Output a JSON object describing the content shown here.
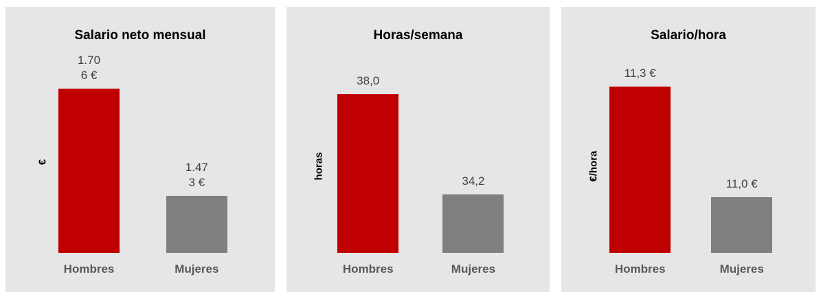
{
  "chart_data": [
    {
      "type": "bar",
      "title": "Salario neto mensual",
      "ylabel": "€",
      "categories": [
        "Hombres",
        "Mujeres"
      ],
      "values": [
        1706,
        1473
      ],
      "value_labels": [
        "1.706 €",
        "1.473 €"
      ],
      "colors": [
        "#c00000",
        "#808080"
      ],
      "ylim": [
        1350,
        1750
      ]
    },
    {
      "type": "bar",
      "title": "Horas/semana",
      "ylabel": "horas",
      "categories": [
        "Hombres",
        "Mujeres"
      ],
      "values": [
        38.0,
        34.2
      ],
      "value_labels": [
        "38,0",
        "34,2"
      ],
      "colors": [
        "#c00000",
        "#808080"
      ],
      "ylim": [
        32,
        39
      ]
    },
    {
      "type": "bar",
      "title": "Salario/hora",
      "ylabel": "€/hora",
      "categories": [
        "Hombres",
        "Mujeres"
      ],
      "values": [
        11.3,
        11.0
      ],
      "value_labels": [
        "11,3 €",
        "11,0 €"
      ],
      "colors": [
        "#c00000",
        "#808080"
      ],
      "ylim": [
        10.85,
        11.35
      ]
    }
  ]
}
